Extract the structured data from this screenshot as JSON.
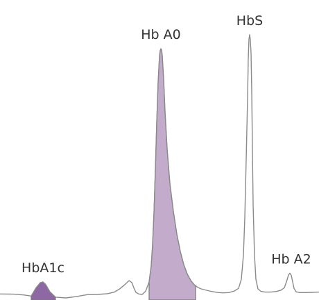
{
  "chart_data": {
    "type": "area",
    "title": "",
    "xlabel": "",
    "ylabel": "",
    "axes_visible": false,
    "grid": false,
    "xlim": [
      0,
      460
    ],
    "ylim": [
      0,
      100
    ],
    "trace": {
      "x": [
        0,
        20,
        35,
        45,
        52,
        58,
        62,
        66,
        72,
        80,
        95,
        110,
        125,
        140,
        155,
        165,
        172,
        180,
        186,
        190,
        193,
        196,
        200,
        205,
        210,
        215,
        218,
        220,
        222,
        224,
        226,
        228,
        230,
        231,
        232,
        233,
        234,
        236,
        238,
        241,
        245,
        250,
        255,
        260,
        265,
        270,
        275,
        280,
        285,
        290,
        296,
        302,
        308,
        315,
        322,
        330,
        338,
        344,
        348,
        351,
        353,
        355,
        357,
        358,
        359,
        360,
        361,
        362,
        363,
        364,
        365,
        367,
        369,
        372,
        376,
        382,
        390,
        398,
        405,
        410,
        413,
        416,
        418,
        420,
        422,
        424,
        427,
        432,
        440,
        450,
        460
      ],
      "y": [
        1.5,
        1.4,
        1.1,
        0.7,
        3.8,
        5.7,
        6.0,
        5.0,
        2.3,
        0.3,
        0.0,
        0.5,
        1.2,
        1.3,
        1.6,
        2.2,
        3.3,
        5.0,
        6.5,
        5.8,
        3.8,
        2.1,
        1.5,
        1.3,
        2.5,
        6.0,
        12.0,
        20.0,
        32.0,
        48.0,
        66.0,
        81.0,
        91.0,
        93.0,
        93.7,
        93.2,
        91.0,
        82.0,
        70.0,
        56.0,
        43.0,
        32.5,
        24.0,
        17.5,
        12.5,
        9.0,
        6.6,
        5.0,
        4.0,
        3.4,
        3.0,
        2.6,
        2.3,
        2.0,
        1.9,
        2.0,
        2.6,
        3.6,
        7.0,
        16.0,
        30.0,
        52.0,
        75.0,
        90.0,
        97.3,
        99.0,
        97.0,
        92.0,
        78.0,
        56.0,
        35.0,
        16.0,
        7.0,
        3.4,
        2.5,
        2.2,
        2.2,
        2.4,
        2.9,
        3.8,
        6.0,
        8.6,
        9.3,
        8.5,
        6.0,
        3.6,
        2.3,
        2.0,
        2.0,
        2.1,
        2.2
      ]
    },
    "shaded_peaks": [
      {
        "name": "HbA1c",
        "x_range": [
          45,
          80
        ],
        "color": "#8e68a3"
      },
      {
        "name": "Hb A0",
        "x_range": [
          215,
          282
        ],
        "color": "#c2abcb"
      }
    ],
    "peak_labels": [
      {
        "text": "HbA1c",
        "x": 62,
        "y": 6.0
      },
      {
        "text": "Hb A0",
        "x": 232,
        "y": 93.7
      },
      {
        "text": "HbS",
        "x": 360,
        "y": 99.0
      },
      {
        "text": "Hb A2",
        "x": 420,
        "y": 9.3
      }
    ]
  }
}
